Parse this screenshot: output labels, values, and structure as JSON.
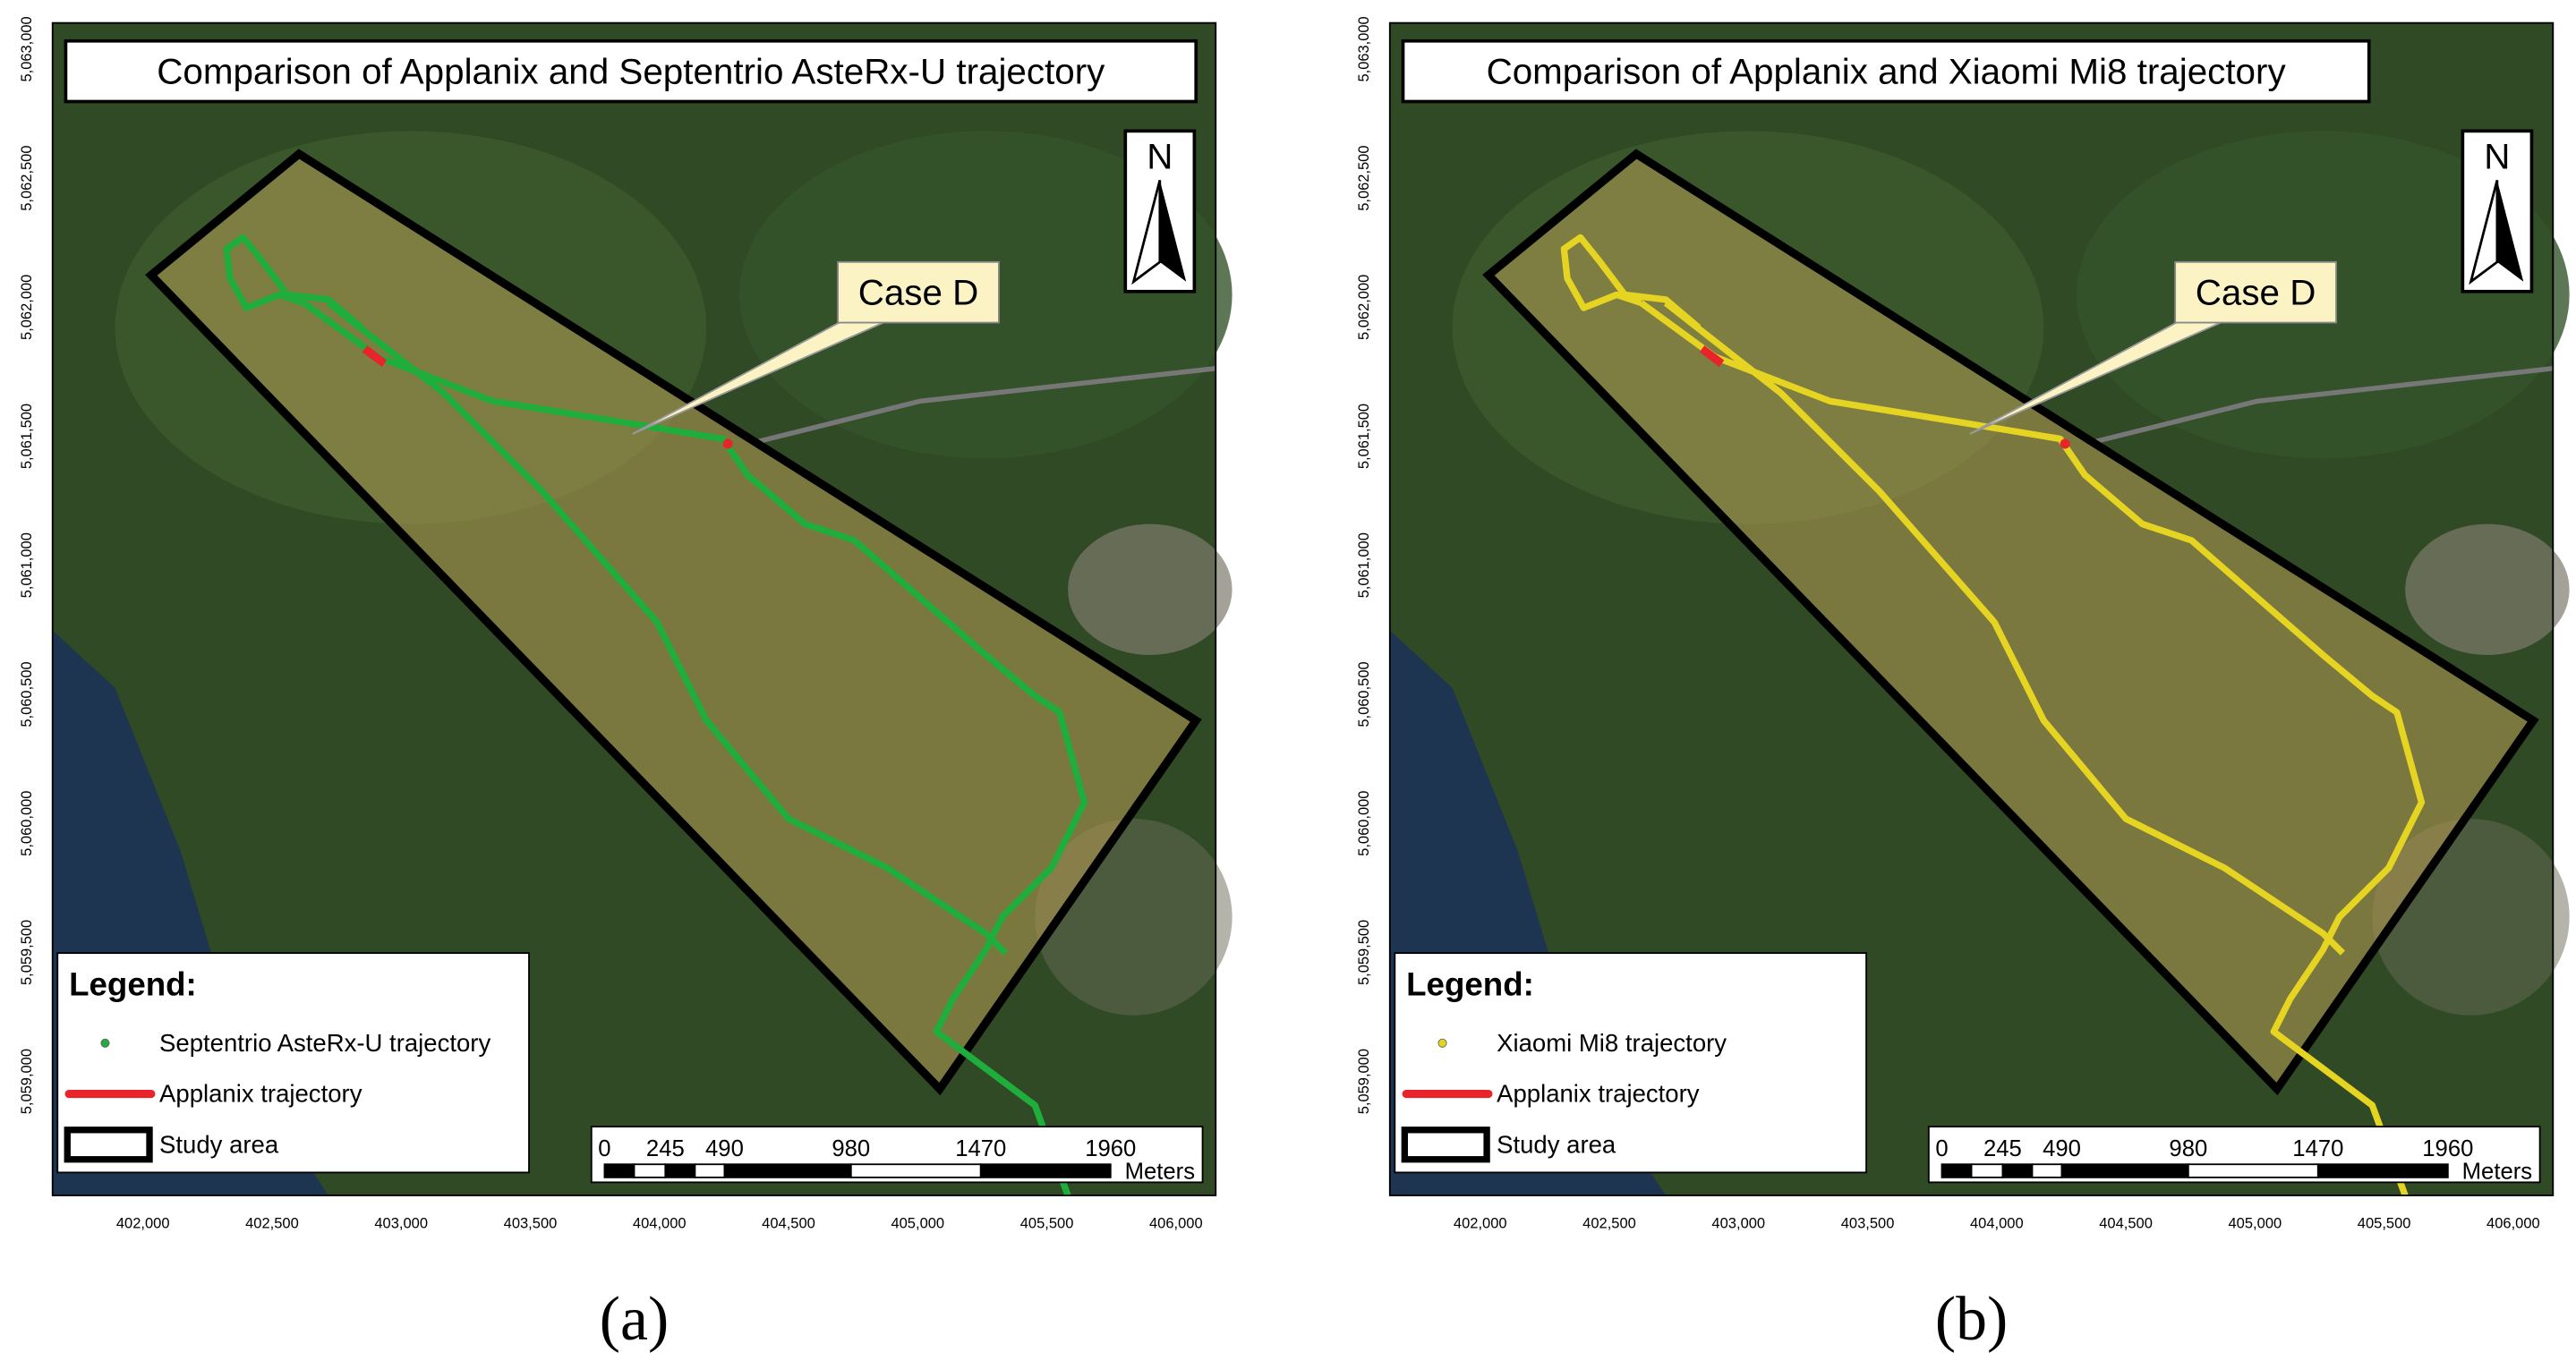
{
  "panels": [
    {
      "title": "Comparison of Applanix and Septentrio AsteRx-U trajectory",
      "north": "N",
      "callout": "Case D",
      "color": "#1fae3c",
      "legend": {
        "heading": "Legend:",
        "items": [
          "Septentrio AsteRx-U trajectory",
          "Applanix trajectory",
          "Study area"
        ]
      },
      "scale_bar": {
        "labels": [
          "0",
          "245",
          "490",
          "980",
          "1470",
          "1960"
        ],
        "unit": "Meters"
      },
      "x_ticks": [
        "402,000",
        "402,500",
        "403,000",
        "403,500",
        "404,000",
        "404,500",
        "405,000",
        "405,500",
        "406,000"
      ],
      "y_ticks": [
        "5,063,000",
        "5,062,500",
        "5,062,000",
        "5,061,500",
        "5,061,000",
        "5,060,500",
        "5,060,000",
        "5,059,500",
        "5,059,000"
      ],
      "caption": "(a)"
    },
    {
      "title": "Comparison of Applanix and Xiaomi Mi8 trajectory",
      "north": "N",
      "callout": "Case D",
      "color": "#e6d422",
      "legend": {
        "heading": "Legend:",
        "items": [
          "Xiaomi Mi8 trajectory",
          "Applanix trajectory",
          "Study area"
        ]
      },
      "scale_bar": {
        "labels": [
          "0",
          "245",
          "490",
          "980",
          "1470",
          "1960"
        ],
        "unit": "Meters"
      },
      "x_ticks": [
        "402,000",
        "402,500",
        "403,000",
        "403,500",
        "404,000",
        "404,500",
        "405,000",
        "405,500",
        "406,000"
      ],
      "y_ticks": [
        "5,063,000",
        "5,062,500",
        "5,062,000",
        "5,061,500",
        "5,061,000",
        "5,060,500",
        "5,060,000",
        "5,059,500",
        "5,059,000"
      ],
      "caption": "(b)"
    }
  ]
}
